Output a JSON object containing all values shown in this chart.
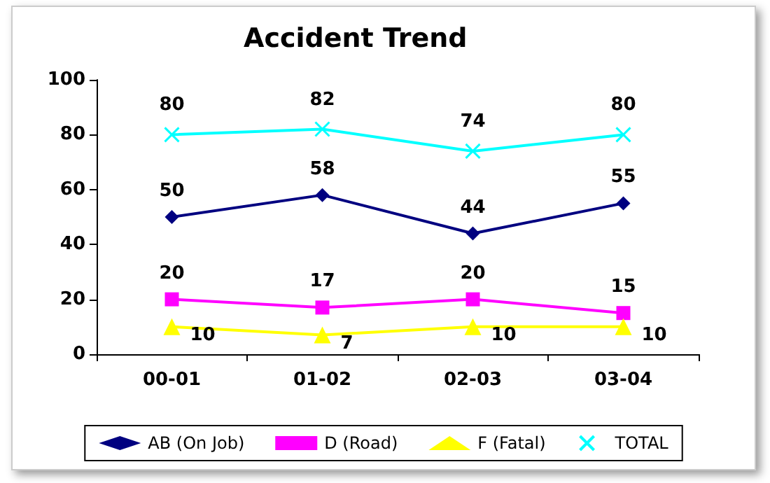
{
  "chart_data": {
    "type": "line",
    "title": "Accident Trend",
    "categories": [
      "00-01",
      "01-02",
      "02-03",
      "03-04"
    ],
    "series": [
      {
        "name": "AB (On Job)",
        "color": "#000080",
        "marker": "diamond",
        "values": [
          50,
          58,
          44,
          55
        ]
      },
      {
        "name": "D (Road)",
        "color": "#ff00ff",
        "marker": "square",
        "values": [
          20,
          17,
          20,
          15
        ]
      },
      {
        "name": "F (Fatal)",
        "color": "#ffff00",
        "marker": "triangle",
        "values": [
          10,
          7,
          10,
          10
        ]
      },
      {
        "name": "TOTAL",
        "color": "#00ffff",
        "marker": "cross",
        "values": [
          80,
          82,
          74,
          80
        ]
      }
    ],
    "ylim": [
      0,
      100
    ],
    "yticks": [
      0,
      20,
      40,
      60,
      80,
      100
    ],
    "data_labels": true,
    "grid": false,
    "legend": "bottom"
  }
}
